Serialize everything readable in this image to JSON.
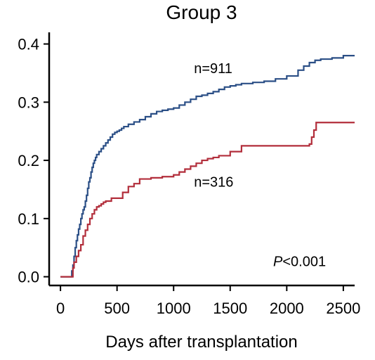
{
  "chart_data": {
    "type": "line",
    "step": true,
    "title": "Group 3",
    "xlabel": "Days after transplantation",
    "ylabel": "",
    "xlim": [
      -100,
      2600
    ],
    "ylim": [
      -0.015,
      0.42
    ],
    "xticks": [
      0,
      500,
      1000,
      1500,
      2000,
      2500
    ],
    "yticks": [
      0.0,
      0.1,
      0.2,
      0.3,
      0.4
    ],
    "ytick_labels": [
      "0.0",
      "0.1",
      "0.2",
      "0.3",
      "0.4"
    ],
    "grid": false,
    "annotations": [
      {
        "text": "n=911",
        "x": 1180,
        "y": 0.35
      },
      {
        "text": "n=316",
        "x": 1180,
        "y": 0.155
      },
      {
        "text": "<0.001",
        "prefix": "P",
        "x": 1880,
        "y": 0.018
      }
    ],
    "series": [
      {
        "color": "#2b4f86",
        "x": [
          0,
          90,
          100,
          110,
          120,
          130,
          140,
          150,
          160,
          170,
          180,
          190,
          200,
          210,
          220,
          230,
          240,
          250,
          260,
          270,
          280,
          290,
          300,
          310,
          320,
          340,
          360,
          380,
          400,
          420,
          440,
          460,
          480,
          500,
          520,
          540,
          560,
          600,
          650,
          700,
          750,
          800,
          850,
          900,
          950,
          1000,
          1050,
          1100,
          1150,
          1200,
          1250,
          1300,
          1350,
          1400,
          1450,
          1500,
          1550,
          1600,
          1700,
          1800,
          1900,
          2000,
          2100,
          2150,
          2200,
          2250,
          2300,
          2400,
          2500,
          2600
        ],
        "y": [
          0.0,
          0.0,
          0.01,
          0.02,
          0.035,
          0.05,
          0.062,
          0.072,
          0.082,
          0.09,
          0.1,
          0.108,
          0.115,
          0.12,
          0.13,
          0.14,
          0.152,
          0.163,
          0.17,
          0.18,
          0.188,
          0.195,
          0.2,
          0.205,
          0.21,
          0.215,
          0.22,
          0.225,
          0.23,
          0.235,
          0.24,
          0.245,
          0.248,
          0.25,
          0.252,
          0.255,
          0.258,
          0.262,
          0.266,
          0.27,
          0.275,
          0.28,
          0.284,
          0.286,
          0.288,
          0.29,
          0.295,
          0.3,
          0.305,
          0.31,
          0.312,
          0.315,
          0.318,
          0.322,
          0.326,
          0.328,
          0.33,
          0.332,
          0.334,
          0.336,
          0.34,
          0.345,
          0.355,
          0.362,
          0.368,
          0.372,
          0.374,
          0.376,
          0.38,
          0.38
        ]
      },
      {
        "color": "#b22e3b",
        "x": [
          0,
          100,
          110,
          120,
          140,
          160,
          180,
          200,
          220,
          240,
          260,
          280,
          300,
          320,
          340,
          360,
          380,
          400,
          450,
          500,
          550,
          600,
          650,
          700,
          800,
          900,
          1000,
          1050,
          1100,
          1150,
          1200,
          1250,
          1300,
          1350,
          1400,
          1500,
          1600,
          1700,
          1800,
          1900,
          2000,
          2100,
          2200,
          2220,
          2240,
          2260,
          2300,
          2400,
          2500,
          2600
        ],
        "y": [
          0.0,
          0.0,
          0.015,
          0.025,
          0.035,
          0.045,
          0.055,
          0.07,
          0.08,
          0.09,
          0.1,
          0.108,
          0.115,
          0.12,
          0.122,
          0.125,
          0.128,
          0.13,
          0.135,
          0.135,
          0.145,
          0.155,
          0.16,
          0.168,
          0.17,
          0.172,
          0.175,
          0.18,
          0.185,
          0.19,
          0.195,
          0.2,
          0.203,
          0.205,
          0.208,
          0.215,
          0.225,
          0.225,
          0.225,
          0.225,
          0.225,
          0.225,
          0.228,
          0.24,
          0.252,
          0.265,
          0.265,
          0.265,
          0.265,
          0.265
        ]
      }
    ]
  }
}
